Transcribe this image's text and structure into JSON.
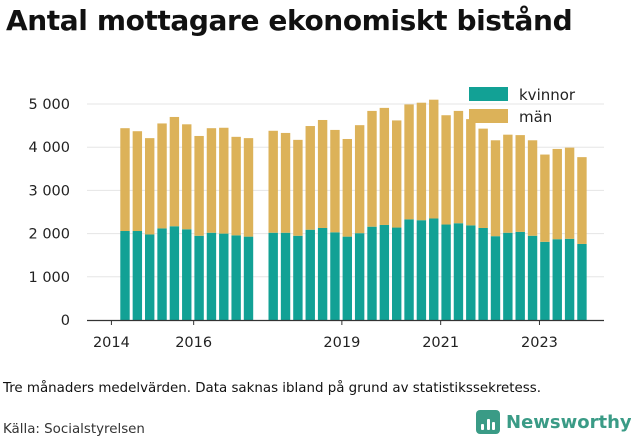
{
  "title": "Antal mottagare ekonomiskt bistånd",
  "note": "Tre månaders medelvärden. Data saknas ibland på grund av statistikssekretess.",
  "source": "Källa: Socialstyrelsen",
  "brand": {
    "name": "Newsworthy"
  },
  "colors": {
    "kvinnor": "#12a195",
    "man": "#dcb259",
    "axis": "#333333",
    "grid": "#e5e5e5"
  },
  "chart_data": {
    "type": "bar",
    "stacked": true,
    "ylim": [
      0,
      5100
    ],
    "yticks": [
      {
        "value": 0,
        "label": "0"
      },
      {
        "value": 1000,
        "label": "1 000"
      },
      {
        "value": 2000,
        "label": "2 000"
      },
      {
        "value": 3000,
        "label": "3 000"
      },
      {
        "value": 4000,
        "label": "4 000"
      },
      {
        "value": 5000,
        "label": "5 000"
      }
    ],
    "xticks": [
      "2014",
      "2016",
      "2019",
      "2021",
      "2023"
    ],
    "legend": [
      "kvinnor",
      "män"
    ],
    "legend_position": "top-right",
    "periods": [
      "2014 Q3",
      "2014 Q4",
      "2015 Q1",
      "2015 Q2",
      "2015 Q3",
      "2015 Q4",
      "2016 Q1",
      "2016 Q2",
      "2016 Q3",
      "2016 Q4",
      "2017 Q1",
      "2017 Q2",
      "2017 Q3",
      "2017 Q4",
      "2018 Q1",
      "2018 Q2",
      "2018 Q3",
      "2018 Q4",
      "2019 Q1",
      "2019 Q2",
      "2019 Q3",
      "2019 Q4",
      "2020 Q1",
      "2020 Q2",
      "2020 Q3",
      "2020 Q4",
      "2021 Q1",
      "2021 Q2",
      "2021 Q3",
      "2021 Q4",
      "2022 Q1",
      "2022 Q2",
      "2022 Q3",
      "2022 Q4",
      "2023 Q1",
      "2023 Q2",
      "2023 Q3",
      "2023 Q4"
    ],
    "series": [
      {
        "name": "kvinnor",
        "values": [
          2060,
          2060,
          1980,
          2120,
          2170,
          2100,
          1950,
          2020,
          2000,
          1960,
          1930,
          null,
          2020,
          2020,
          1950,
          2090,
          2130,
          2030,
          1930,
          2010,
          2160,
          2200,
          2140,
          2330,
          2310,
          2350,
          2210,
          2240,
          2190,
          2130,
          1940,
          2020,
          2040,
          1950,
          1810,
          1870,
          1880,
          1760
        ]
      },
      {
        "name": "män",
        "values": [
          2380,
          2310,
          2230,
          2430,
          2530,
          2430,
          2310,
          2420,
          2450,
          2280,
          2280,
          null,
          2360,
          2310,
          2220,
          2400,
          2500,
          2370,
          2260,
          2500,
          2680,
          2710,
          2480,
          2660,
          2720,
          2750,
          2530,
          2600,
          2460,
          2300,
          2220,
          2270,
          2240,
          2210,
          2020,
          2090,
          2110,
          2010
        ]
      }
    ]
  }
}
